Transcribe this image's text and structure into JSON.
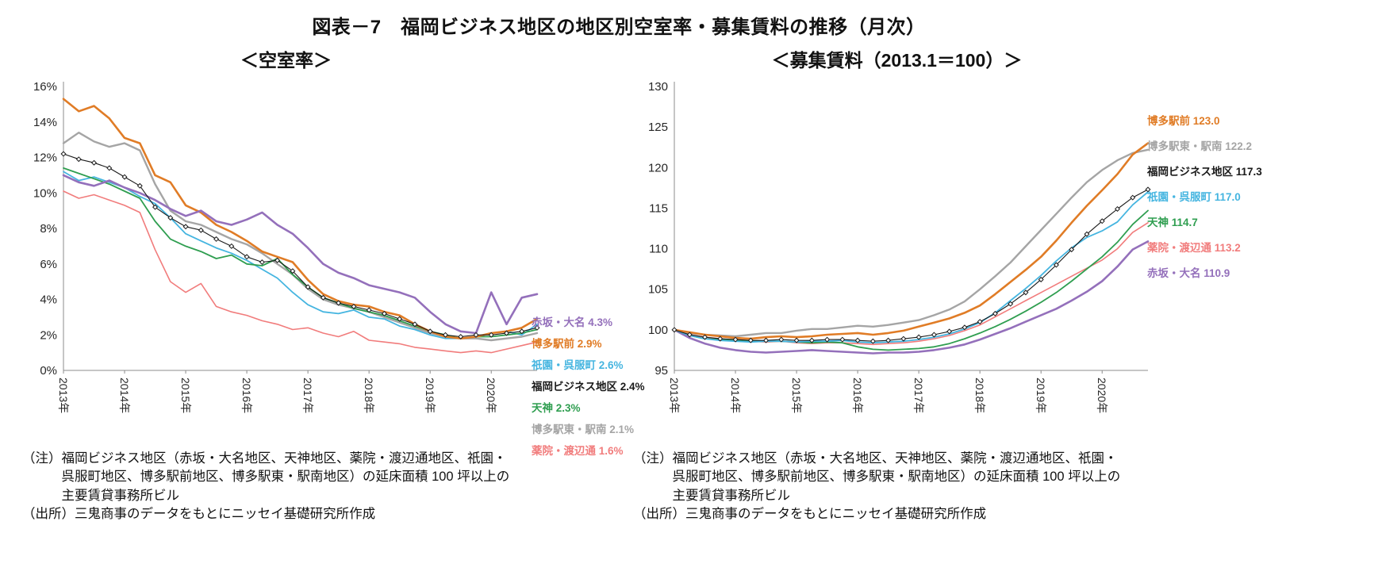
{
  "page_title": "図表－7　福岡ビジネス地区の地区別空室率・募集賃料の推移（月次）",
  "chart_data": [
    {
      "type": "line",
      "title": "＜空室率＞",
      "ylim": [
        0,
        16
      ],
      "ytick_step": 2,
      "ytick_suffix": "%",
      "x_years": [
        "2013年",
        "2014年",
        "2015年",
        "2016年",
        "2017年",
        "2018年",
        "2019年",
        "2020年"
      ],
      "points_per_year": 4,
      "grid": false,
      "legend_position": "right",
      "series": [
        {
          "name": "博多駅東・駅南",
          "color": "#A5A5A5",
          "width": 2.4,
          "final_value": 2.1,
          "values": [
            12.8,
            13.4,
            12.9,
            12.6,
            12.8,
            12.4,
            10.5,
            9.0,
            8.4,
            8.2,
            7.8,
            7.4,
            7.1,
            6.6,
            6.0,
            5.4,
            4.6,
            4.0,
            3.7,
            3.5,
            3.3,
            3.0,
            2.7,
            2.4,
            2.1,
            1.9,
            1.8,
            1.8,
            1.7,
            1.8,
            1.9,
            2.1
          ]
        },
        {
          "name": "薬院・渡辺通",
          "color": "#F17C7C",
          "width": 1.6,
          "final_value": 1.6,
          "values": [
            10.1,
            9.7,
            9.9,
            9.6,
            9.3,
            8.9,
            6.8,
            5.0,
            4.4,
            4.9,
            3.6,
            3.3,
            3.1,
            2.8,
            2.6,
            2.3,
            2.4,
            2.1,
            1.9,
            2.2,
            1.7,
            1.6,
            1.5,
            1.3,
            1.2,
            1.1,
            1.0,
            1.1,
            1.0,
            1.2,
            1.4,
            1.6
          ]
        },
        {
          "name": "祇園・呉服町",
          "color": "#45B5E0",
          "width": 1.8,
          "final_value": 2.6,
          "values": [
            11.2,
            10.7,
            10.9,
            10.6,
            10.3,
            9.8,
            9.4,
            8.6,
            7.7,
            7.3,
            6.9,
            6.6,
            6.2,
            5.7,
            5.2,
            4.4,
            3.7,
            3.3,
            3.2,
            3.4,
            3.0,
            2.9,
            2.5,
            2.3,
            2.0,
            1.8,
            1.8,
            1.9,
            2.1,
            2.2,
            2.0,
            2.6
          ]
        },
        {
          "name": "天神",
          "color": "#2F9E50",
          "width": 1.8,
          "final_value": 2.3,
          "values": [
            11.4,
            11.1,
            10.8,
            10.5,
            10.1,
            9.7,
            8.4,
            7.4,
            7.0,
            6.7,
            6.3,
            6.5,
            6.0,
            5.9,
            6.3,
            5.4,
            4.7,
            4.1,
            3.8,
            3.5,
            3.3,
            3.1,
            2.8,
            2.5,
            2.2,
            2.0,
            1.8,
            1.9,
            1.9,
            2.0,
            2.1,
            2.3
          ]
        },
        {
          "name": "博多駅前",
          "color": "#E07C26",
          "width": 2.6,
          "final_value": 2.9,
          "values": [
            15.3,
            14.6,
            14.9,
            14.2,
            13.1,
            12.8,
            11.0,
            10.6,
            9.3,
            8.9,
            8.2,
            7.8,
            7.3,
            6.7,
            6.4,
            6.1,
            5.1,
            4.3,
            3.9,
            3.7,
            3.6,
            3.3,
            3.1,
            2.6,
            2.2,
            1.9,
            1.8,
            1.9,
            2.1,
            2.2,
            2.4,
            2.9
          ]
        },
        {
          "name": "赤坂・大名",
          "color": "#9470BB",
          "width": 2.6,
          "final_value": 4.3,
          "values": [
            11.0,
            10.6,
            10.4,
            10.7,
            10.3,
            10.0,
            9.6,
            9.1,
            8.7,
            9.0,
            8.4,
            8.2,
            8.5,
            8.9,
            8.2,
            7.7,
            6.9,
            6.0,
            5.5,
            5.2,
            4.8,
            4.6,
            4.4,
            4.1,
            3.3,
            2.6,
            2.2,
            2.1,
            4.4,
            2.6,
            4.1,
            4.3
          ]
        },
        {
          "name": "福岡ビジネス地区",
          "color": "#1A1A1A",
          "width": 1.1,
          "marker": true,
          "final_value": 2.4,
          "values": [
            12.2,
            11.9,
            11.7,
            11.4,
            10.9,
            10.4,
            9.2,
            8.6,
            8.1,
            7.9,
            7.4,
            7.0,
            6.4,
            6.1,
            6.2,
            5.6,
            4.7,
            4.1,
            3.8,
            3.6,
            3.4,
            3.2,
            2.9,
            2.6,
            2.2,
            2.0,
            1.9,
            2.0,
            2.0,
            2.1,
            2.2,
            2.4
          ]
        }
      ],
      "legend": [
        {
          "label": "赤坂・大名 4.3%",
          "color": "#9470BB"
        },
        {
          "label": "博多駅前 2.9%",
          "color": "#E07C26"
        },
        {
          "label": "祇園・呉服町 2.6%",
          "color": "#45B5E0"
        },
        {
          "label": "福岡ビジネス地区 2.4%",
          "color": "#1A1A1A"
        },
        {
          "label": "天神 2.3%",
          "color": "#2F9E50"
        },
        {
          "label": "博多駅東・駅南 2.1%",
          "color": "#A5A5A5"
        },
        {
          "label": "薬院・渡辺通 1.6%",
          "color": "#F17C7C"
        }
      ],
      "note": "（注）福岡ビジネス地区（赤坂・大名地区、天神地区、薬院・渡辺通地区、祇園・呉服町地区、博多駅前地区、博多駅東・駅南地区）の延床面積 100 坪以上の主要賃貸事務所ビル",
      "source": "（出所）三鬼商事のデータをもとにニッセイ基礎研究所作成"
    },
    {
      "type": "line",
      "title": "＜募集賃料（2013.1＝100）＞",
      "ylim": [
        95,
        130
      ],
      "ytick_step": 5,
      "ytick_suffix": "",
      "x_years": [
        "2013年",
        "2014年",
        "2015年",
        "2016年",
        "2017年",
        "2018年",
        "2019年",
        "2020年"
      ],
      "points_per_year": 4,
      "grid": false,
      "legend_position": "right",
      "series": [
        {
          "name": "赤坂・大名",
          "color": "#9470BB",
          "width": 2.6,
          "final_value": 110.9,
          "values": [
            100.0,
            99.0,
            98.3,
            97.8,
            97.5,
            97.3,
            97.2,
            97.3,
            97.4,
            97.5,
            97.4,
            97.3,
            97.2,
            97.1,
            97.2,
            97.2,
            97.3,
            97.5,
            97.8,
            98.2,
            98.8,
            99.5,
            100.2,
            101.0,
            101.8,
            102.6,
            103.6,
            104.7,
            106.0,
            107.8,
            109.9,
            110.9
          ]
        },
        {
          "name": "薬院・渡辺通",
          "color": "#F17C7C",
          "width": 1.6,
          "final_value": 113.2,
          "values": [
            100.0,
            99.4,
            99.1,
            98.9,
            98.7,
            98.6,
            98.5,
            98.6,
            98.4,
            98.3,
            98.4,
            98.4,
            98.3,
            98.2,
            98.3,
            98.4,
            98.6,
            98.9,
            99.3,
            99.9,
            100.6,
            101.6,
            102.6,
            103.6,
            104.6,
            105.6,
            106.6,
            107.6,
            108.6,
            110.0,
            112.0,
            113.2
          ]
        },
        {
          "name": "天神",
          "color": "#2F9E50",
          "width": 1.8,
          "final_value": 114.7,
          "values": [
            100.0,
            99.3,
            98.9,
            98.8,
            98.7,
            98.6,
            98.6,
            98.6,
            98.5,
            98.4,
            98.5,
            98.4,
            97.9,
            97.6,
            97.5,
            97.6,
            97.7,
            97.9,
            98.3,
            98.9,
            99.6,
            100.4,
            101.3,
            102.3,
            103.4,
            104.6,
            106.0,
            107.5,
            109.0,
            110.8,
            113.0,
            114.7
          ]
        },
        {
          "name": "祇園・呉服町",
          "color": "#45B5E0",
          "width": 1.8,
          "final_value": 117.0,
          "values": [
            100.0,
            99.3,
            98.9,
            98.7,
            98.6,
            98.5,
            98.6,
            98.6,
            98.5,
            98.6,
            98.6,
            98.7,
            98.5,
            98.4,
            98.5,
            98.6,
            98.8,
            99.1,
            99.5,
            100.1,
            100.9,
            102.1,
            103.6,
            105.1,
            106.7,
            108.5,
            110.1,
            111.4,
            112.2,
            113.3,
            115.4,
            117.0
          ]
        },
        {
          "name": "博多駅東・駅南",
          "color": "#A5A5A5",
          "width": 2.4,
          "final_value": 122.2,
          "values": [
            100.0,
            99.6,
            99.4,
            99.3,
            99.2,
            99.4,
            99.6,
            99.6,
            99.9,
            100.1,
            100.1,
            100.3,
            100.5,
            100.4,
            100.6,
            100.9,
            101.2,
            101.8,
            102.5,
            103.5,
            105.0,
            106.6,
            108.3,
            110.3,
            112.3,
            114.3,
            116.3,
            118.2,
            119.7,
            120.9,
            121.8,
            122.2
          ]
        },
        {
          "name": "博多駅前",
          "color": "#E07C26",
          "width": 2.6,
          "final_value": 123.0,
          "values": [
            100.0,
            99.7,
            99.4,
            99.2,
            99.0,
            98.9,
            99.1,
            99.2,
            99.1,
            99.2,
            99.4,
            99.5,
            99.6,
            99.4,
            99.6,
            99.9,
            100.4,
            100.9,
            101.4,
            102.1,
            103.0,
            104.4,
            105.9,
            107.4,
            109.0,
            111.0,
            113.2,
            115.3,
            117.2,
            119.2,
            121.6,
            123.0
          ]
        },
        {
          "name": "福岡ビジネス地区",
          "color": "#1A1A1A",
          "width": 1.1,
          "marker": true,
          "final_value": 117.3,
          "values": [
            100.0,
            99.4,
            99.1,
            98.9,
            98.8,
            98.7,
            98.7,
            98.8,
            98.7,
            98.7,
            98.8,
            98.8,
            98.7,
            98.6,
            98.7,
            98.9,
            99.1,
            99.4,
            99.8,
            100.3,
            101.0,
            102.0,
            103.2,
            104.6,
            106.2,
            108.0,
            109.9,
            111.8,
            113.4,
            114.9,
            116.3,
            117.3
          ]
        }
      ],
      "legend": [
        {
          "label": "博多駅前 123.0",
          "color": "#E07C26"
        },
        {
          "label": "博多駅東・駅南 122.2",
          "color": "#A5A5A5"
        },
        {
          "label": "福岡ビジネス地区 117.3",
          "color": "#1A1A1A"
        },
        {
          "label": "祇園・呉服町 117.0",
          "color": "#45B5E0"
        },
        {
          "label": "天神 114.7",
          "color": "#2F9E50"
        },
        {
          "label": "薬院・渡辺通 113.2",
          "color": "#F17C7C"
        },
        {
          "label": "赤坂・大名 110.9",
          "color": "#9470BB"
        }
      ],
      "note": "（注）福岡ビジネス地区（赤坂・大名地区、天神地区、薬院・渡辺通地区、祇園・呉服町地区、博多駅前地区、博多駅東・駅南地区）の延床面積 100 坪以上の主要賃貸事務所ビル",
      "source": "（出所）三鬼商事のデータをもとにニッセイ基礎研究所作成"
    }
  ]
}
